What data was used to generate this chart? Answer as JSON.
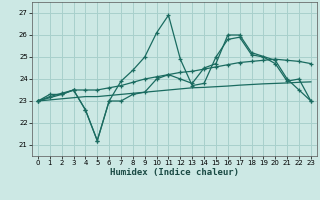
{
  "bg_color": "#cce8e4",
  "grid_color": "#a8d0cc",
  "line_color": "#1a6b60",
  "xlabel": "Humidex (Indice chaleur)",
  "xlim": [
    -0.5,
    23.5
  ],
  "ylim": [
    20.5,
    27.5
  ],
  "xticks": [
    0,
    1,
    2,
    3,
    4,
    5,
    6,
    7,
    8,
    9,
    10,
    11,
    12,
    13,
    14,
    15,
    16,
    17,
    18,
    19,
    20,
    21,
    22,
    23
  ],
  "yticks": [
    21,
    22,
    23,
    24,
    25,
    26,
    27
  ],
  "line1_x": [
    0,
    1,
    2,
    3,
    4,
    5,
    6,
    7,
    8,
    9,
    10,
    11,
    12,
    13,
    14,
    15,
    16,
    17,
    18,
    19,
    20,
    21,
    22,
    23
  ],
  "line1_y": [
    23.0,
    23.3,
    23.3,
    23.5,
    22.6,
    21.2,
    23.0,
    23.9,
    24.4,
    25.0,
    26.1,
    26.9,
    24.9,
    23.7,
    23.8,
    25.0,
    25.8,
    25.9,
    25.1,
    25.0,
    24.7,
    23.9,
    24.0,
    23.0
  ],
  "line2_x": [
    0,
    1,
    2,
    3,
    4,
    5,
    6,
    7,
    8,
    9,
    10,
    11,
    12,
    13,
    14,
    15,
    16,
    17,
    18,
    19,
    20,
    21,
    22,
    23
  ],
  "line2_y": [
    23.0,
    23.2,
    23.35,
    23.5,
    23.5,
    23.5,
    23.6,
    23.7,
    23.85,
    24.0,
    24.1,
    24.2,
    24.3,
    24.35,
    24.45,
    24.55,
    24.65,
    24.75,
    24.8,
    24.85,
    24.9,
    24.85,
    24.8,
    24.7
  ],
  "line3_x": [
    0,
    1,
    2,
    3,
    4,
    5,
    6,
    7,
    8,
    9,
    10,
    11,
    12,
    13,
    14,
    15,
    16,
    17,
    18,
    19,
    20,
    21,
    22,
    23
  ],
  "line3_y": [
    23.0,
    23.05,
    23.1,
    23.15,
    23.2,
    23.2,
    23.25,
    23.3,
    23.35,
    23.4,
    23.45,
    23.5,
    23.55,
    23.6,
    23.62,
    23.65,
    23.68,
    23.72,
    23.75,
    23.78,
    23.8,
    23.82,
    23.85,
    23.87
  ],
  "line4_x": [
    0,
    2,
    3,
    4,
    5,
    6,
    7,
    8,
    9,
    10,
    11,
    12,
    13,
    14,
    15,
    16,
    17,
    18,
    20,
    21,
    22,
    23
  ],
  "line4_y": [
    23.0,
    23.3,
    23.5,
    22.6,
    21.2,
    23.0,
    23.0,
    23.3,
    23.4,
    24.0,
    24.2,
    24.0,
    23.8,
    24.5,
    24.7,
    26.0,
    26.0,
    25.2,
    24.85,
    24.0,
    23.5,
    23.0
  ]
}
